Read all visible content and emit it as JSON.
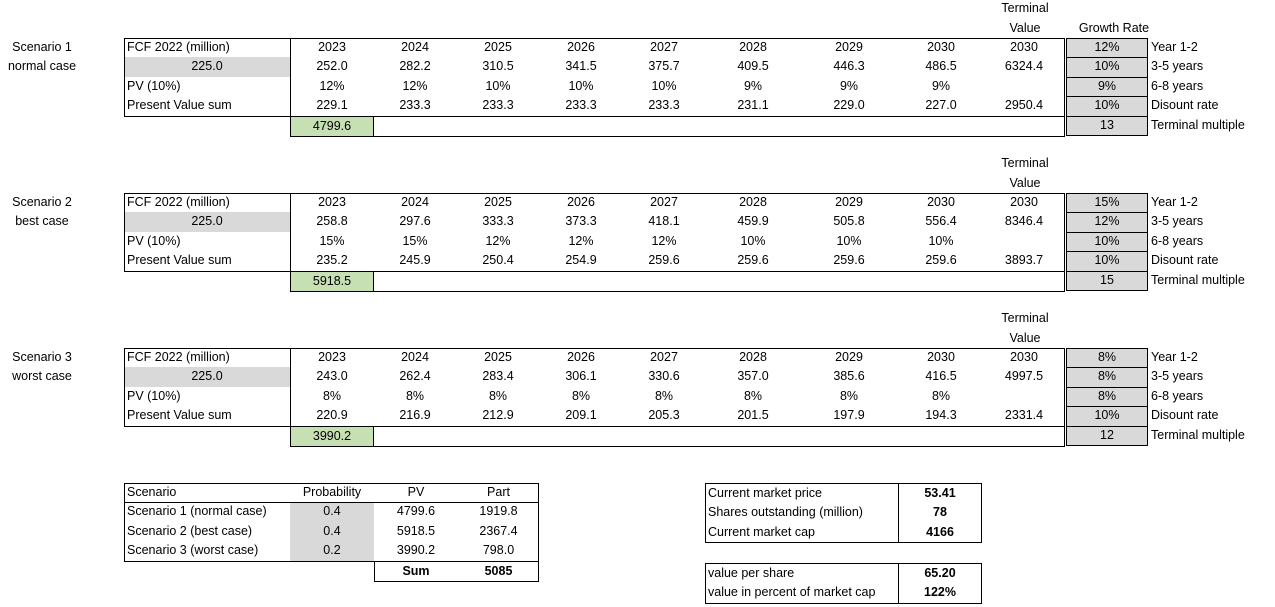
{
  "scenarios": [
    {
      "name": "Scenario 1",
      "case": "normal case",
      "row_labels": [
        "FCF 2022 (million)",
        "PV (10%)",
        "Present Value sum"
      ],
      "fcf_base": "225.0",
      "terminal_header": "Terminal Value",
      "years": [
        "2023",
        "2024",
        "2025",
        "2026",
        "2027",
        "2028",
        "2029",
        "2030",
        "2030"
      ],
      "fcf": [
        "252.0",
        "282.2",
        "310.5",
        "341.5",
        "375.7",
        "409.5",
        "446.3",
        "486.5",
        "6324.4"
      ],
      "growth": [
        "12%",
        "12%",
        "10%",
        "10%",
        "10%",
        "9%",
        "9%",
        "9%"
      ],
      "pv": [
        "229.1",
        "233.3",
        "233.3",
        "233.3",
        "233.3",
        "231.1",
        "229.0",
        "227.0",
        "2950.4"
      ],
      "total": "4799.6",
      "assumptions_header": "Growth Rate",
      "assumptions": [
        {
          "value": "12%",
          "label": "Year 1-2"
        },
        {
          "value": "10%",
          "label": "3-5 years"
        },
        {
          "value": "9%",
          "label": "6-8 years"
        },
        {
          "value": "10%",
          "label": "Disount rate"
        },
        {
          "value": "13",
          "label": "Terminal multiple"
        }
      ]
    },
    {
      "name": "Scenario 2",
      "case": "best case",
      "row_labels": [
        "FCF 2022 (million)",
        "PV (10%)",
        "Present Value sum"
      ],
      "fcf_base": "225.0",
      "terminal_header": "Terminal Value",
      "years": [
        "2023",
        "2024",
        "2025",
        "2026",
        "2027",
        "2028",
        "2029",
        "2030",
        "2030"
      ],
      "fcf": [
        "258.8",
        "297.6",
        "333.3",
        "373.3",
        "418.1",
        "459.9",
        "505.8",
        "556.4",
        "8346.4"
      ],
      "growth": [
        "15%",
        "15%",
        "12%",
        "12%",
        "12%",
        "10%",
        "10%",
        "10%"
      ],
      "pv": [
        "235.2",
        "245.9",
        "250.4",
        "254.9",
        "259.6",
        "259.6",
        "259.6",
        "259.6",
        "3893.7"
      ],
      "total": "5918.5",
      "assumptions_header": "",
      "assumptions": [
        {
          "value": "15%",
          "label": "Year 1-2"
        },
        {
          "value": "12%",
          "label": "3-5 years"
        },
        {
          "value": "10%",
          "label": "6-8 years"
        },
        {
          "value": "10%",
          "label": "Disount rate"
        },
        {
          "value": "15",
          "label": "Terminal multiple"
        }
      ]
    },
    {
      "name": "Scenario 3",
      "case": "worst case",
      "row_labels": [
        "FCF 2022 (million)",
        "PV (10%)",
        "Present Value sum"
      ],
      "fcf_base": "225.0",
      "terminal_header": "Terminal Value",
      "years": [
        "2023",
        "2024",
        "2025",
        "2026",
        "2027",
        "2028",
        "2029",
        "2030",
        "2030"
      ],
      "fcf": [
        "243.0",
        "262.4",
        "283.4",
        "306.1",
        "330.6",
        "357.0",
        "385.6",
        "416.5",
        "4997.5"
      ],
      "growth": [
        "8%",
        "8%",
        "8%",
        "8%",
        "8%",
        "8%",
        "8%",
        "8%"
      ],
      "pv": [
        "220.9",
        "216.9",
        "212.9",
        "209.1",
        "205.3",
        "201.5",
        "197.9",
        "194.3",
        "2331.4"
      ],
      "total": "3990.2",
      "assumptions_header": "",
      "assumptions": [
        {
          "value": "8%",
          "label": "Year 1-2"
        },
        {
          "value": "8%",
          "label": "3-5 years"
        },
        {
          "value": "8%",
          "label": "6-8 years"
        },
        {
          "value": "10%",
          "label": "Disount rate"
        },
        {
          "value": "12",
          "label": "Terminal multiple"
        }
      ]
    }
  ],
  "summary": {
    "headers": [
      "Scenario",
      "Probability",
      "PV",
      "Part"
    ],
    "rows": [
      {
        "scenario": "Scenario 1 (normal case)",
        "probability": "0.4",
        "pv": "4799.6",
        "part": "1919.8"
      },
      {
        "scenario": "Scenario 2 (best case)",
        "probability": "0.4",
        "pv": "5918.5",
        "part": "2367.4"
      },
      {
        "scenario": "Scenario 3 (worst case)",
        "probability": "0.2",
        "pv": "3990.2",
        "part": "798.0"
      }
    ],
    "sum_label": "Sum",
    "sum_value": "5085"
  },
  "market": {
    "rows": [
      {
        "label": "Current market price",
        "value": "53.41"
      },
      {
        "label": "Shares outstanding (million)",
        "value": "78"
      },
      {
        "label": "Current market cap",
        "value": "4166"
      }
    ]
  },
  "valuation": {
    "rows": [
      {
        "label": "value per share",
        "value": "65.20"
      },
      {
        "label": "value in percent of market cap",
        "value": "122%"
      }
    ]
  },
  "colors": {
    "input_gray": "#d9d9d9",
    "result_green": "#c6e0b4",
    "border": "#000000"
  }
}
